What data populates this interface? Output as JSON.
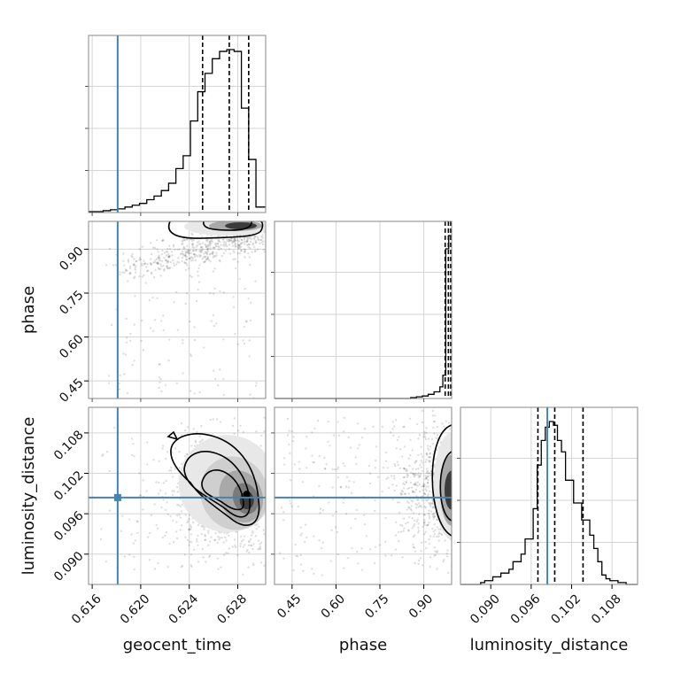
{
  "chart_data": {
    "type": "corner",
    "parameters": [
      "geocent_time",
      "phase",
      "luminosity_distance"
    ],
    "axis_labels": {
      "x": [
        "geocent_time",
        "phase",
        "luminosity_distance"
      ],
      "y": [
        "",
        "phase",
        "luminosity_distance"
      ]
    },
    "ranges": {
      "geocent_time": [
        0.6157,
        0.6303
      ],
      "phase": [
        0.39,
        0.995
      ],
      "luminosity_distance": [
        0.0855,
        0.1118
      ]
    },
    "ticks": {
      "geocent_time": [
        0.616,
        0.62,
        0.624,
        0.628
      ],
      "phase": [
        0.45,
        0.6,
        0.75,
        0.9
      ],
      "luminosity_distance": [
        0.09,
        0.096,
        0.102,
        0.108
      ]
    },
    "tick_labels": {
      "geocent_time": [
        "0.616",
        "0.620",
        "0.624",
        "0.628"
      ],
      "phase": [
        "0.45",
        "0.60",
        "0.75",
        "0.90"
      ],
      "luminosity_distance": [
        "0.090",
        "0.096",
        "0.102",
        "0.108"
      ]
    },
    "truths": {
      "geocent_time": 0.6181,
      "phase": null,
      "luminosity_distance": 0.0984
    },
    "truth_color": "#4682b4",
    "quantiles": {
      "geocent_time": [
        0.6251,
        0.6273,
        0.6289
      ],
      "phase": [
        0.973,
        0.984,
        0.994
      ],
      "luminosity_distance": [
        0.097,
        0.0995,
        0.1037
      ]
    },
    "histograms": {
      "geocent_time": {
        "bin_edges": [
          0.6157,
          0.6163,
          0.6169,
          0.6175,
          0.6181,
          0.6187,
          0.6193,
          0.6199,
          0.6205,
          0.6211,
          0.6217,
          0.6223,
          0.6229,
          0.6235,
          0.6241,
          0.6247,
          0.6253,
          0.6259,
          0.6265,
          0.6271,
          0.6277,
          0.6283,
          0.6289,
          0.6295,
          0.6301,
          0.6303
        ],
        "counts": [
          0.5,
          0.5,
          1,
          1.5,
          2,
          3,
          4,
          5,
          7,
          9,
          12,
          16,
          24,
          31,
          50,
          66,
          76,
          84,
          88,
          89,
          88,
          57,
          29,
          3,
          3
        ]
      },
      "phase": {
        "bin_edges": [
          0.39,
          0.855,
          0.875,
          0.895,
          0.915,
          0.935,
          0.955,
          0.965,
          0.975,
          0.985,
          0.995
        ],
        "counts": [
          0,
          0.5,
          1,
          1.5,
          2.5,
          4,
          7,
          14,
          90,
          98
        ]
      },
      "luminosity_distance": {
        "bin_edges": [
          0.0855,
          0.0885,
          0.0891,
          0.0903,
          0.0915,
          0.0927,
          0.0933,
          0.0945,
          0.0951,
          0.0963,
          0.0969,
          0.0975,
          0.0981,
          0.0987,
          0.0993,
          0.0999,
          0.1005,
          0.1011,
          0.1023,
          0.1035,
          0.1047,
          0.1053,
          0.1059,
          0.1065,
          0.1071,
          0.1077,
          0.1089,
          0.1101,
          0.1118
        ],
        "counts": [
          0,
          1,
          2,
          4,
          6,
          8,
          12,
          16,
          24,
          40,
          63,
          76,
          83,
          86,
          84,
          76,
          70,
          55,
          43,
          34,
          26,
          19,
          12,
          5,
          3,
          2,
          1,
          0
        ]
      }
    },
    "density_peaks": [
      {
        "x": "geocent_time",
        "y": "phase",
        "peak": [
          0.6287,
          0.984
        ]
      },
      {
        "x": "geocent_time",
        "y": "luminosity_distance",
        "peak": [
          0.6286,
          0.0985
        ]
      },
      {
        "x": "phase",
        "y": "luminosity_distance",
        "peak": [
          0.985,
          0.0995
        ]
      }
    ]
  }
}
